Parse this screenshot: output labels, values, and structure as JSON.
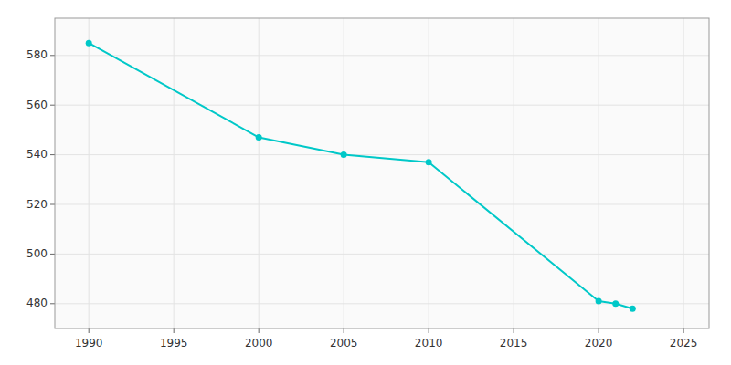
{
  "chart_data": {
    "type": "line",
    "x": [
      1990,
      2000,
      2005,
      2010,
      2020,
      2021,
      2022
    ],
    "values": [
      585,
      547,
      540,
      537,
      481,
      480,
      478
    ],
    "color": "#00c8c8",
    "marker": "circle",
    "xlim": [
      1988,
      2026.5
    ],
    "ylim": [
      470,
      595
    ],
    "xticks": [
      1990,
      1995,
      2000,
      2005,
      2010,
      2015,
      2020,
      2025
    ],
    "yticks": [
      480,
      500,
      520,
      540,
      560,
      580
    ],
    "grid": true
  }
}
